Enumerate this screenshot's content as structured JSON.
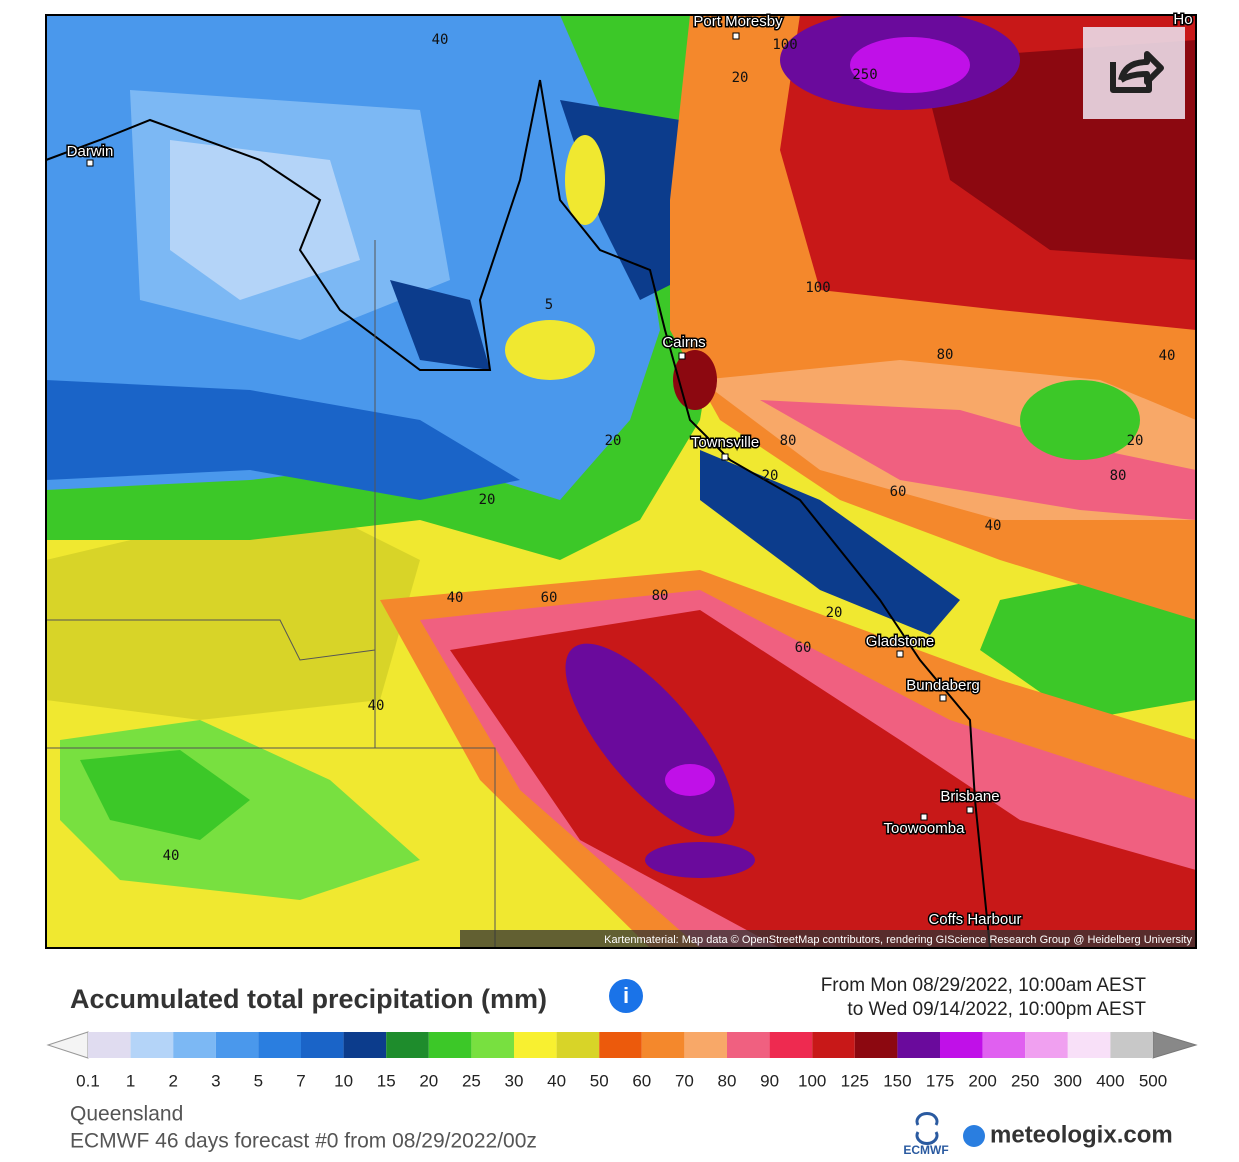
{
  "map": {
    "cities": [
      "Port Moresby",
      "Darwin",
      "Cairns",
      "Townsville",
      "Gladstone",
      "Bundaberg",
      "Brisbane",
      "Toowoomba",
      "Coffs Harbour",
      "Ho"
    ],
    "contour_labels": [
      40,
      100,
      250,
      20,
      100,
      5,
      80,
      40,
      20,
      80,
      20,
      20,
      80,
      60,
      20,
      40,
      40,
      60,
      80,
      20,
      60,
      40,
      40
    ],
    "attribution": "Kartenmaterial: Map data © OpenStreetMap contributors, rendering GIScience Research Group @ Heidelberg University"
  },
  "legend": {
    "title": "Accumulated total precipitation (mm)",
    "period": [
      "From Mon 08/29/2022, 10:00am AEST",
      "to Wed 09/14/2022, 10:00pm AEST"
    ],
    "ticks": [
      0.1,
      1,
      2,
      3,
      5,
      7,
      10,
      15,
      20,
      25,
      30,
      40,
      50,
      60,
      70,
      80,
      90,
      100,
      125,
      150,
      175,
      200,
      250,
      300,
      400,
      500
    ],
    "colors": [
      "#e0dcf0",
      "#b4d4f8",
      "#7cb8f4",
      "#4a98ec",
      "#2a7ee0",
      "#1a64c8",
      "#0c3c8c",
      "#1e8c2c",
      "#3cc828",
      "#78e040",
      "#f8f030",
      "#d8d428",
      "#ec5a0c",
      "#f4882c",
      "#f8a868",
      "#f06080",
      "#ee2a50",
      "#c81818",
      "#8c0810",
      "#6a0a9c",
      "#c010e8",
      "#e060f0",
      "#f0a0f0",
      "#f8e0f8",
      "#c8c8c8"
    ]
  },
  "footer": {
    "region": "Queensland",
    "model": "ECMWF 46 days forecast #0 from 08/29/2022/00z"
  },
  "logos": [
    "ECMWF",
    "meteologix.com"
  ]
}
